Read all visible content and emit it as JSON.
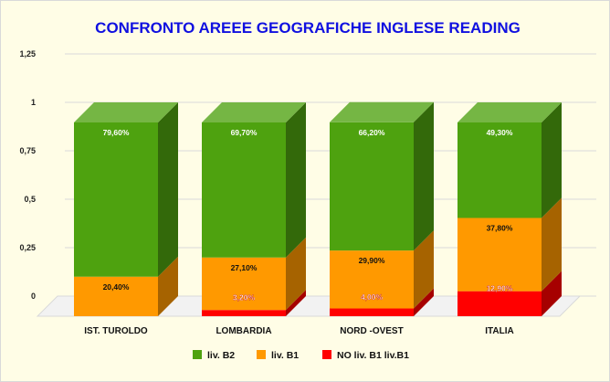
{
  "chart_data": {
    "type": "bar",
    "stacked": true,
    "style": "3d",
    "title": "CONFRONTO AREEE GEOGRAFICHE INGLESE READING",
    "xlabel": "",
    "ylabel": "",
    "ylim": [
      0,
      1.25
    ],
    "yticks": [
      "0",
      "0,25",
      "0,5",
      "0,75",
      "1",
      "1,25"
    ],
    "grid": true,
    "legend_position": "bottom",
    "categories": [
      "IST. TUROLDO",
      "LOMBARDIA",
      "NORD -OVEST",
      "ITALIA"
    ],
    "series": [
      {
        "name": "NO liv. B1 liv.B1",
        "color": "#ff0000",
        "values": [
          0,
          0.032,
          0.04,
          0.129
        ],
        "labels": [
          "",
          "3,20%",
          "4,00%",
          "12,90%"
        ]
      },
      {
        "name": "liv. B1",
        "color": "#ff9900",
        "values": [
          0.204,
          0.271,
          0.299,
          0.378
        ],
        "labels": [
          "20,40%",
          "27,10%",
          "29,90%",
          "37,80%"
        ]
      },
      {
        "name": "liv. B2",
        "color": "#4ea20f",
        "values": [
          0.796,
          0.697,
          0.662,
          0.493
        ],
        "labels": [
          "79,60%",
          "69,70%",
          "66,20%",
          "49,30%"
        ]
      }
    ],
    "legend_order": [
      "liv. B2",
      "liv. B1",
      "NO liv. B1 liv.B1"
    ]
  }
}
